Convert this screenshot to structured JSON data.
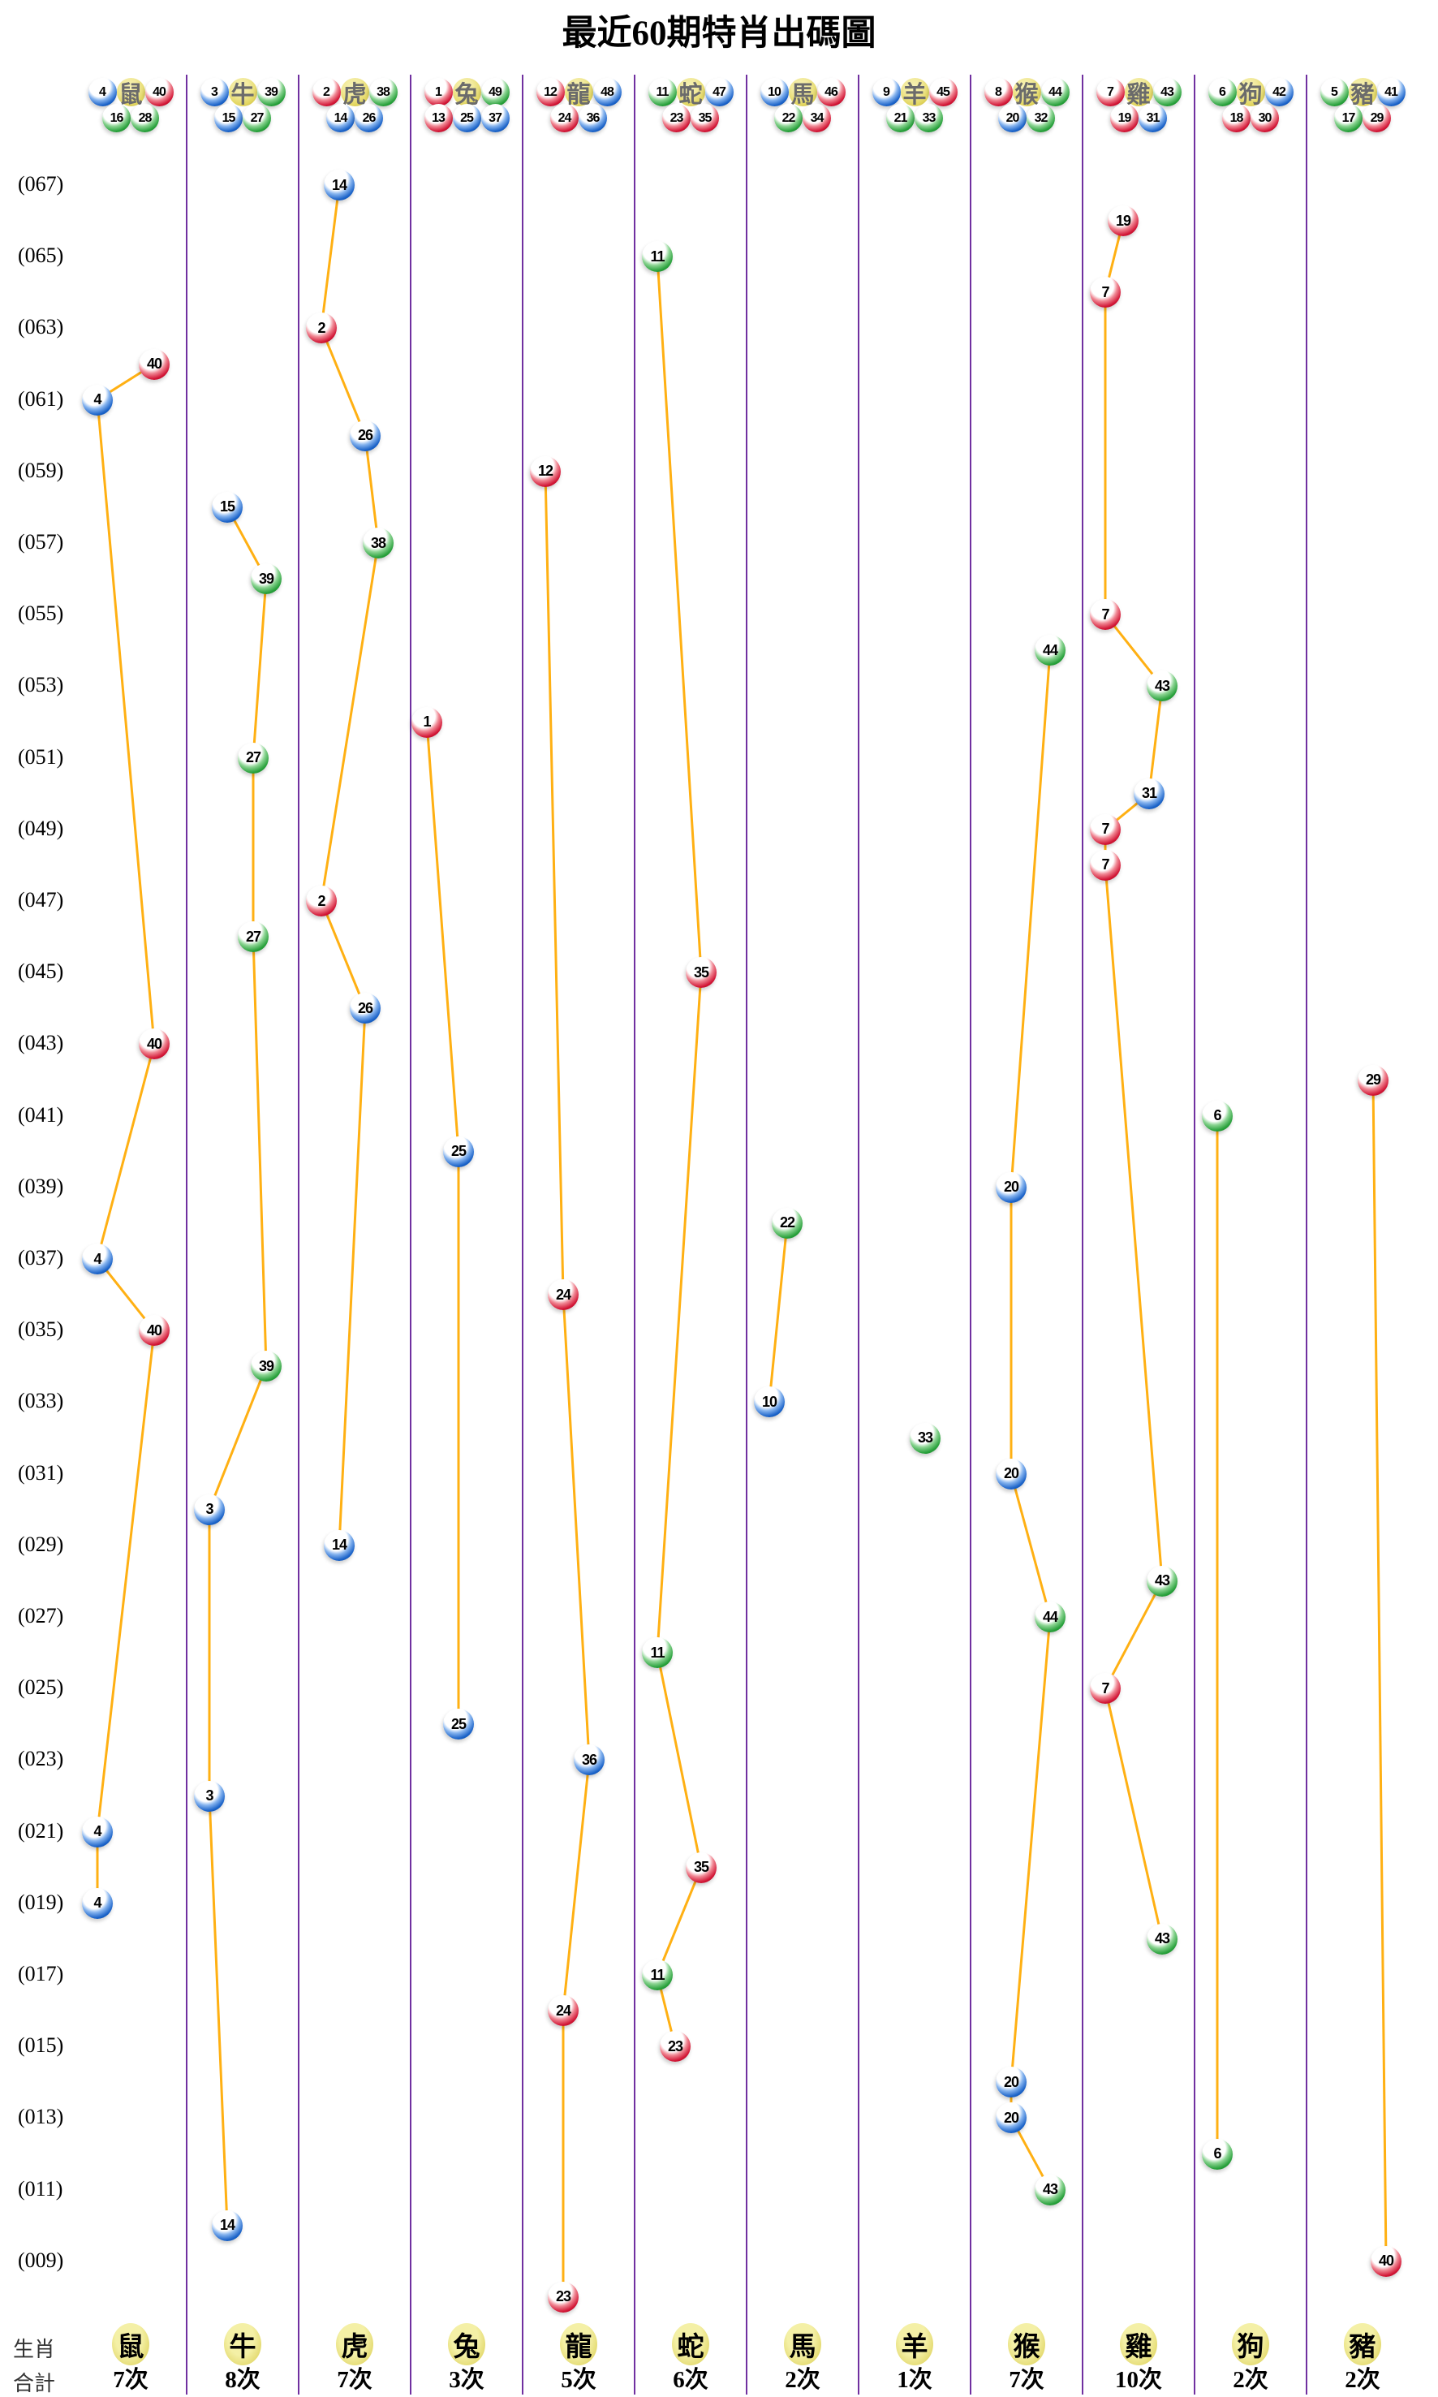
{
  "title": "最近60期特肖出碼圖",
  "legend": {
    "zodiac_label": "生肖",
    "total_label": "合計"
  },
  "axis_row_labels": [
    "(067)",
    "(065)",
    "(063)",
    "(061)",
    "(059)",
    "(057)",
    "(055)",
    "(053)",
    "(051)",
    "(049)",
    "(047)",
    "(045)",
    "(043)",
    "(041)",
    "(039)",
    "(037)",
    "(035)",
    "(033)",
    "(031)",
    "(029)",
    "(027)",
    "(025)",
    "(023)",
    "(021)",
    "(019)",
    "(017)",
    "(015)",
    "(013)",
    "(011)",
    "(009)"
  ],
  "ball_colors": {
    "red": [
      1,
      2,
      7,
      8,
      12,
      13,
      18,
      19,
      23,
      24,
      29,
      30,
      34,
      35,
      40,
      45,
      46
    ],
    "blue": [
      3,
      4,
      9,
      10,
      14,
      15,
      20,
      25,
      26,
      31,
      36,
      37,
      41,
      42,
      47,
      48
    ],
    "green": [
      5,
      6,
      11,
      16,
      17,
      21,
      22,
      27,
      28,
      32,
      33,
      38,
      39,
      43,
      44,
      49
    ]
  },
  "theme": {
    "line": "#ffb013",
    "divider": "#7030a0",
    "red": "#d21535",
    "blue": "#1a62c8",
    "green": "#27a03a",
    "badge_yellow": "#e2d660"
  },
  "chart_data": {
    "type": "scatter",
    "title": "最近60期特肖出碼圖",
    "x_categories": [
      "鼠",
      "牛",
      "虎",
      "兔",
      "龍",
      "蛇",
      "馬",
      "羊",
      "猴",
      "雞",
      "狗",
      "豬"
    ],
    "y_axis": {
      "top_period": 67,
      "bottom_period": 8,
      "tick_step": 2,
      "tick_format": "(0NN)"
    },
    "legend_position": "bottom",
    "grid": "vertical-dividers-only",
    "columns": [
      {
        "zodiac": "鼠",
        "numbers_top": [
          4,
          40
        ],
        "numbers_bottom": [
          16,
          28
        ],
        "total": "7次",
        "points": [
          {
            "period": 62,
            "num": 40,
            "slot": 4
          },
          {
            "period": 61,
            "num": 4,
            "slot": 1
          },
          {
            "period": 43,
            "num": 40,
            "slot": 4
          },
          {
            "period": 37,
            "num": 4,
            "slot": 1
          },
          {
            "period": 35,
            "num": 40,
            "slot": 4
          },
          {
            "period": 21,
            "num": 4,
            "slot": 1
          },
          {
            "period": 19,
            "num": 4,
            "slot": 1
          }
        ]
      },
      {
        "zodiac": "牛",
        "numbers_top": [
          3,
          39
        ],
        "numbers_bottom": [
          15,
          27
        ],
        "total": "8次",
        "points": [
          {
            "period": 58,
            "num": 15,
            "slot": 2
          },
          {
            "period": 56,
            "num": 39,
            "slot": 4
          },
          {
            "period": 51,
            "num": 27,
            "slot": 3
          },
          {
            "period": 46,
            "num": 27,
            "slot": 3
          },
          {
            "period": 34,
            "num": 39,
            "slot": 4
          },
          {
            "period": 30,
            "num": 3,
            "slot": 1
          },
          {
            "period": 22,
            "num": 3,
            "slot": 1
          },
          {
            "period": 10,
            "num": 14,
            "slot": 2
          }
        ]
      },
      {
        "zodiac": "虎",
        "numbers_top": [
          2,
          38
        ],
        "numbers_bottom": [
          14,
          26
        ],
        "total": "7次",
        "points": [
          {
            "period": 67,
            "num": 14,
            "slot": 2
          },
          {
            "period": 63,
            "num": 2,
            "slot": 1
          },
          {
            "period": 60,
            "num": 26,
            "slot": 3
          },
          {
            "period": 57,
            "num": 38,
            "slot": 4
          },
          {
            "period": 47,
            "num": 2,
            "slot": 1
          },
          {
            "period": 44,
            "num": 26,
            "slot": 3
          },
          {
            "period": 29,
            "num": 14,
            "slot": 2
          }
        ]
      },
      {
        "zodiac": "兔",
        "numbers_top": [
          1,
          49
        ],
        "numbers_bottom": [
          13,
          25,
          37
        ],
        "total": "3次",
        "points": [
          {
            "period": 52,
            "num": 1,
            "slot": 1
          },
          {
            "period": 40,
            "num": 25,
            "slot": 3
          },
          {
            "period": 24,
            "num": 25,
            "slot": 3
          }
        ]
      },
      {
        "zodiac": "龍",
        "numbers_top": [
          12,
          48
        ],
        "numbers_bottom": [
          24,
          36
        ],
        "total": "5次",
        "points": [
          {
            "period": 59,
            "num": 12,
            "slot": 1
          },
          {
            "period": 36,
            "num": 24,
            "slot": 2
          },
          {
            "period": 23,
            "num": 36,
            "slot": 3
          },
          {
            "period": 16,
            "num": 24,
            "slot": 2
          },
          {
            "period": 8,
            "num": 23,
            "slot": 2
          }
        ]
      },
      {
        "zodiac": "蛇",
        "numbers_top": [
          11,
          47
        ],
        "numbers_bottom": [
          23,
          35
        ],
        "total": "6次",
        "points": [
          {
            "period": 65,
            "num": 11,
            "slot": 1
          },
          {
            "period": 45,
            "num": 35,
            "slot": 3
          },
          {
            "period": 26,
            "num": 11,
            "slot": 1
          },
          {
            "period": 20,
            "num": 35,
            "slot": 3
          },
          {
            "period": 17,
            "num": 11,
            "slot": 1
          },
          {
            "period": 15,
            "num": 23,
            "slot": 2
          }
        ]
      },
      {
        "zodiac": "馬",
        "numbers_top": [
          10,
          46
        ],
        "numbers_bottom": [
          22,
          34
        ],
        "total": "2次",
        "points": [
          {
            "period": 38,
            "num": 22,
            "slot": 2
          },
          {
            "period": 33,
            "num": 10,
            "slot": 1
          }
        ]
      },
      {
        "zodiac": "羊",
        "numbers_top": [
          9,
          45
        ],
        "numbers_bottom": [
          21,
          33
        ],
        "total": "1次",
        "points": [
          {
            "period": 32,
            "num": 33,
            "slot": 3
          }
        ]
      },
      {
        "zodiac": "猴",
        "numbers_top": [
          8,
          44
        ],
        "numbers_bottom": [
          20,
          32
        ],
        "total": "7次",
        "points": [
          {
            "period": 54,
            "num": 44,
            "slot": 4
          },
          {
            "period": 39,
            "num": 20,
            "slot": 2
          },
          {
            "period": 31,
            "num": 20,
            "slot": 2
          },
          {
            "period": 27,
            "num": 44,
            "slot": 4
          },
          {
            "period": 14,
            "num": 20,
            "slot": 2
          },
          {
            "period": 13,
            "num": 20,
            "slot": 2
          },
          {
            "period": 11,
            "num": 43,
            "slot": 4
          }
        ]
      },
      {
        "zodiac": "雞",
        "numbers_top": [
          7,
          43
        ],
        "numbers_bottom": [
          19,
          31
        ],
        "total": "10次",
        "points": [
          {
            "period": 66,
            "num": 19,
            "slot": 2
          },
          {
            "period": 64,
            "num": 7,
            "slot": 1
          },
          {
            "period": 55,
            "num": 7,
            "slot": 1
          },
          {
            "period": 53,
            "num": 43,
            "slot": 4
          },
          {
            "period": 50,
            "num": 31,
            "slot": 3
          },
          {
            "period": 49,
            "num": 7,
            "slot": 1
          },
          {
            "period": 48,
            "num": 7,
            "slot": 1
          },
          {
            "period": 28,
            "num": 43,
            "slot": 4
          },
          {
            "period": 25,
            "num": 7,
            "slot": 1
          },
          {
            "period": 18,
            "num": 43,
            "slot": 4
          }
        ]
      },
      {
        "zodiac": "狗",
        "numbers_top": [
          6,
          42
        ],
        "numbers_bottom": [
          18,
          30
        ],
        "total": "2次",
        "points": [
          {
            "period": 41,
            "num": 6,
            "slot": 1
          },
          {
            "period": 12,
            "num": 6,
            "slot": 1
          }
        ]
      },
      {
        "zodiac": "豬",
        "numbers_top": [
          5,
          41
        ],
        "numbers_bottom": [
          17,
          29
        ],
        "total": "2次",
        "points": [
          {
            "period": 42,
            "num": 29,
            "slot": 3
          },
          {
            "period": 9,
            "num": 40,
            "slot": 4
          }
        ]
      }
    ]
  }
}
